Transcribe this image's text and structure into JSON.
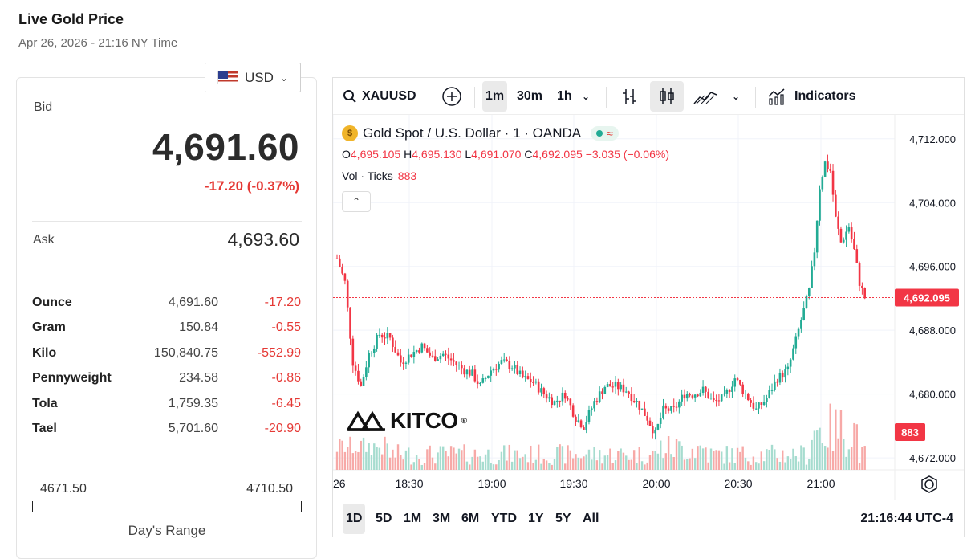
{
  "header": {
    "title": "Live Gold Price",
    "subtitle": "Apr 26, 2026 - 21:16 NY Time"
  },
  "currency": {
    "selected": "USD",
    "icon": "us-flag-icon"
  },
  "quote": {
    "bid_label": "Bid",
    "bid": "4,691.60",
    "change": "-17.20 (-0.37%)",
    "ask_label": "Ask",
    "ask": "4,693.60"
  },
  "units": [
    {
      "name": "Ounce",
      "price": "4,691.60",
      "change": "-17.20"
    },
    {
      "name": "Gram",
      "price": "150.84",
      "change": "-0.55"
    },
    {
      "name": "Kilo",
      "price": "150,840.75",
      "change": "-552.99"
    },
    {
      "name": "Pennyweight",
      "price": "234.58",
      "change": "-0.86"
    },
    {
      "name": "Tola",
      "price": "1,759.35",
      "change": "-6.45"
    },
    {
      "name": "Tael",
      "price": "5,701.60",
      "change": "-20.90"
    }
  ],
  "day_range": {
    "low": "4671.50",
    "high": "4710.50",
    "label": "Day's Range"
  },
  "toolbar": {
    "symbol": "XAUUSD",
    "intervals": [
      "1m",
      "30m",
      "1h"
    ],
    "active_interval": "1m",
    "indicators_label": "Indicators"
  },
  "legend": {
    "name": "Gold Spot / U.S. Dollar · 1 · OANDA",
    "o_label": "O",
    "o": "4,695.105",
    "h_label": "H",
    "h": "4,695.130",
    "l_label": "L",
    "l": "4,691.070",
    "c_label": "C",
    "c": "4,692.095",
    "chg": "−3.035 (−0.06%)",
    "vol_label": "Vol · Ticks",
    "vol": "883"
  },
  "logo_text": "KITCO",
  "ranges": [
    "1D",
    "5D",
    "1M",
    "3M",
    "6M",
    "YTD",
    "1Y",
    "5Y",
    "All"
  ],
  "active_range": "1D",
  "clock": "21:16:44 UTC-4",
  "colors": {
    "up": "#22ab94",
    "down": "#f23645",
    "bid_change": "#e53935"
  },
  "chart_data": {
    "type": "candlestick",
    "title": "Gold Spot / U.S. Dollar · 1 · OANDA",
    "y_ticks": [
      "4,712.000",
      "4,704.000",
      "4,696.000",
      "4,688.000",
      "4,680.000",
      "4,672.000"
    ],
    "y_range": [
      4670.5,
      4715.0
    ],
    "x_ticks": [
      "26",
      "18:30",
      "19:00",
      "19:30",
      "20:00",
      "20:30",
      "21:00"
    ],
    "last_price": "4,692.095",
    "last_volume": "883",
    "price_path": [
      [
        0,
        4697.0
      ],
      [
        3,
        4694.0
      ],
      [
        6,
        4684.0
      ],
      [
        9,
        4681.0
      ],
      [
        12,
        4685.0
      ],
      [
        16,
        4687.5
      ],
      [
        20,
        4687.0
      ],
      [
        24,
        4684.0
      ],
      [
        28,
        4685.0
      ],
      [
        32,
        4686.0
      ],
      [
        36,
        4684.5
      ],
      [
        40,
        4685.0
      ],
      [
        44,
        4684.0
      ],
      [
        48,
        4683.0
      ],
      [
        51,
        4682.5
      ],
      [
        54,
        4681.0
      ],
      [
        58,
        4683.0
      ],
      [
        62,
        4684.0
      ],
      [
        66,
        4683.5
      ],
      [
        70,
        4682.0
      ],
      [
        74,
        4681.5
      ],
      [
        78,
        4680.0
      ],
      [
        82,
        4679.0
      ],
      [
        86,
        4680.0
      ],
      [
        90,
        4677.0
      ],
      [
        93,
        4676.0
      ],
      [
        97,
        4679.0
      ],
      [
        101,
        4681.0
      ],
      [
        105,
        4681.0
      ],
      [
        109,
        4680.5
      ],
      [
        113,
        4679.0
      ],
      [
        117,
        4677.0
      ],
      [
        120,
        4675.0
      ],
      [
        123,
        4678.0
      ],
      [
        127,
        4678.0
      ],
      [
        131,
        4680.0
      ],
      [
        134,
        4680.0
      ],
      [
        138,
        4680.5
      ],
      [
        142,
        4679.0
      ],
      [
        146,
        4679.5
      ],
      [
        150,
        4682.0
      ],
      [
        154,
        4680.0
      ],
      [
        158,
        4678.0
      ],
      [
        162,
        4679.5
      ],
      [
        166,
        4682.0
      ],
      [
        170,
        4683.0
      ],
      [
        174,
        4688.0
      ],
      [
        178,
        4693.0
      ],
      [
        180,
        4698.0
      ],
      [
        182,
        4706.0
      ],
      [
        184,
        4709.0
      ],
      [
        186,
        4708.0
      ],
      [
        188,
        4702.0
      ],
      [
        190,
        4699.0
      ],
      [
        193,
        4701.0
      ],
      [
        195,
        4698.0
      ],
      [
        197,
        4694.0
      ],
      [
        199,
        4692.1
      ]
    ]
  }
}
